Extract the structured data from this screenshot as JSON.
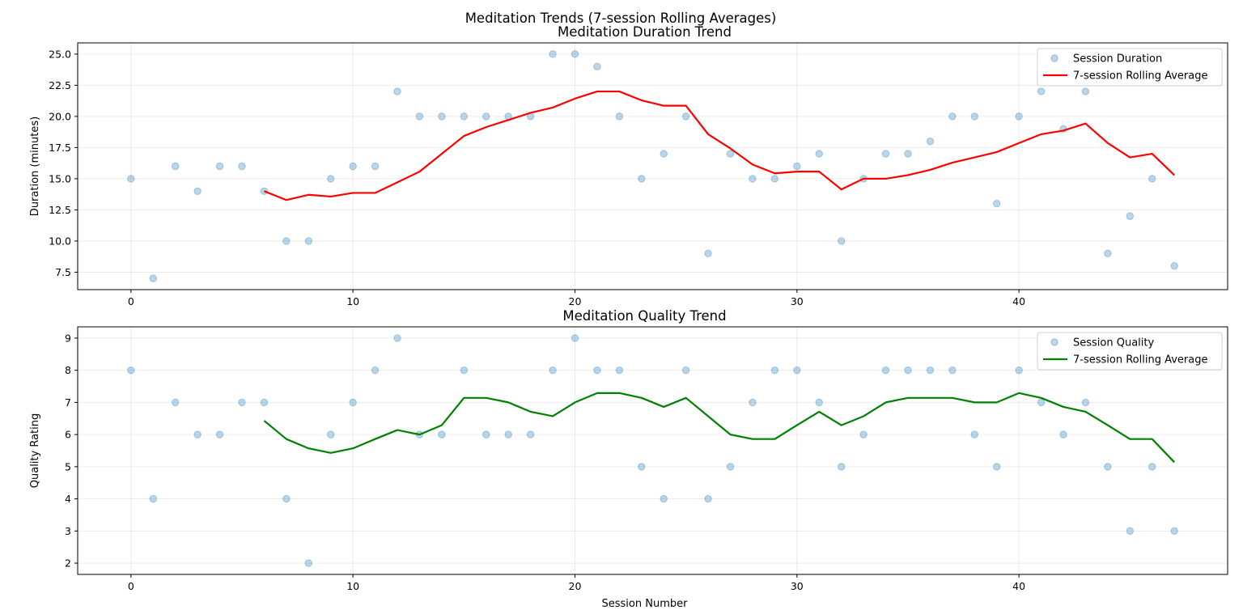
{
  "figure": {
    "suptitle": "Meditation Trends (7-session Rolling Averages)"
  },
  "chart_data": [
    {
      "type": "line",
      "title": "Meditation Duration Trend",
      "xlabel": "",
      "ylabel": "Duration (minutes)",
      "xlim": [
        -2.4,
        49.4
      ],
      "ylim": [
        6.1,
        25.9
      ],
      "xticks": [
        0,
        10,
        20,
        30,
        40
      ],
      "yticks": [
        7.5,
        10.0,
        12.5,
        15.0,
        17.5,
        20.0,
        22.5,
        25.0
      ],
      "ytick_labels": [
        "7.5",
        "10.0",
        "12.5",
        "15.0",
        "17.5",
        "20.0",
        "22.5",
        "25.0"
      ],
      "grid": true,
      "legend_position": "upper right",
      "series": [
        {
          "name": "Session Duration",
          "kind": "scatter",
          "color": "#1f77b4",
          "x": [
            0,
            1,
            2,
            3,
            4,
            5,
            6,
            7,
            8,
            9,
            10,
            11,
            12,
            13,
            14,
            15,
            16,
            17,
            18,
            19,
            20,
            21,
            22,
            23,
            24,
            25,
            26,
            27,
            28,
            29,
            30,
            31,
            32,
            33,
            34,
            35,
            36,
            37,
            38,
            39,
            40,
            41,
            42,
            43,
            44,
            45,
            46,
            47
          ],
          "values": [
            15,
            7,
            16,
            14,
            16,
            16,
            14,
            10,
            10,
            15,
            16,
            16,
            22,
            20,
            20,
            20,
            20,
            20,
            20,
            25,
            25,
            24,
            20,
            15,
            17,
            20,
            9,
            17,
            15,
            15,
            16,
            17,
            10,
            15,
            17,
            17,
            18,
            20,
            20,
            13,
            20,
            22,
            19,
            22,
            9,
            12,
            15,
            8
          ]
        },
        {
          "name": "7-session Rolling Average",
          "kind": "line",
          "color": "#ff0000",
          "x": [
            6,
            7,
            8,
            9,
            10,
            11,
            12,
            13,
            14,
            15,
            16,
            17,
            18,
            19,
            20,
            21,
            22,
            23,
            24,
            25,
            26,
            27,
            28,
            29,
            30,
            31,
            32,
            33,
            34,
            35,
            36,
            37,
            38,
            39,
            40,
            41,
            42,
            43,
            44,
            45,
            46,
            47
          ],
          "values": [
            14.0,
            13.29,
            13.71,
            13.57,
            13.86,
            13.86,
            14.71,
            15.57,
            17.0,
            18.43,
            19.14,
            19.71,
            20.29,
            20.71,
            21.43,
            22.0,
            22.0,
            21.29,
            20.86,
            20.86,
            18.57,
            17.43,
            16.14,
            15.43,
            15.57,
            15.57,
            14.14,
            15.0,
            15.0,
            15.29,
            15.71,
            16.29,
            16.71,
            17.14,
            17.86,
            18.57,
            18.86,
            19.43,
            17.86,
            16.71,
            17.0,
            15.29
          ]
        }
      ]
    },
    {
      "type": "line",
      "title": "Meditation Quality Trend",
      "xlabel": "Session Number",
      "ylabel": "Quality Rating",
      "xlim": [
        -2.4,
        49.4
      ],
      "ylim": [
        1.65,
        9.35
      ],
      "xticks": [
        0,
        10,
        20,
        30,
        40
      ],
      "yticks": [
        2,
        3,
        4,
        5,
        6,
        7,
        8,
        9
      ],
      "ytick_labels": [
        "2",
        "3",
        "4",
        "5",
        "6",
        "7",
        "8",
        "9"
      ],
      "grid": true,
      "legend_position": "upper right",
      "series": [
        {
          "name": "Session Quality",
          "kind": "scatter",
          "color": "#1f77b4",
          "x": [
            0,
            1,
            2,
            3,
            4,
            5,
            6,
            7,
            8,
            9,
            10,
            11,
            12,
            13,
            14,
            15,
            16,
            17,
            18,
            19,
            20,
            21,
            22,
            23,
            24,
            25,
            26,
            27,
            28,
            29,
            30,
            31,
            32,
            33,
            34,
            35,
            36,
            37,
            38,
            39,
            40,
            41,
            42,
            43,
            44,
            45,
            46,
            47
          ],
          "values": [
            8,
            4,
            7,
            6,
            6,
            7,
            7,
            4,
            2,
            6,
            7,
            8,
            9,
            6,
            6,
            8,
            6,
            6,
            6,
            8,
            9,
            8,
            8,
            5,
            4,
            8,
            4,
            5,
            7,
            8,
            8,
            7,
            5,
            6,
            8,
            8,
            8,
            8,
            6,
            5,
            8,
            7,
            6,
            7,
            5,
            3,
            5,
            3
          ]
        },
        {
          "name": "7-session Rolling Average",
          "kind": "line",
          "color": "#008000",
          "x": [
            6,
            7,
            8,
            9,
            10,
            11,
            12,
            13,
            14,
            15,
            16,
            17,
            18,
            19,
            20,
            21,
            22,
            23,
            24,
            25,
            26,
            27,
            28,
            29,
            30,
            31,
            32,
            33,
            34,
            35,
            36,
            37,
            38,
            39,
            40,
            41,
            42,
            43,
            44,
            45,
            46,
            47
          ],
          "values": [
            6.43,
            5.86,
            5.57,
            5.43,
            5.57,
            5.86,
            6.14,
            6.0,
            6.29,
            7.14,
            7.14,
            7.0,
            6.71,
            6.57,
            7.0,
            7.29,
            7.29,
            7.14,
            6.86,
            7.14,
            6.57,
            6.0,
            5.86,
            5.86,
            6.29,
            6.71,
            6.29,
            6.57,
            7.0,
            7.14,
            7.14,
            7.14,
            7.0,
            7.0,
            7.29,
            7.14,
            6.86,
            6.71,
            6.29,
            5.86,
            5.86,
            5.14
          ]
        }
      ]
    }
  ]
}
